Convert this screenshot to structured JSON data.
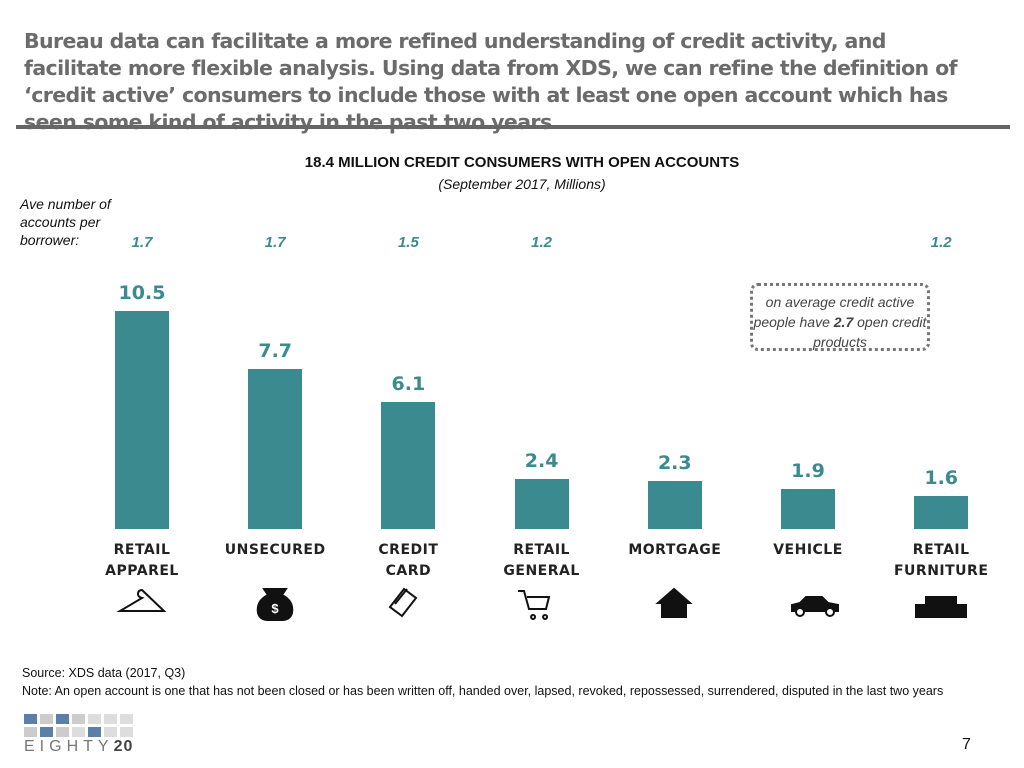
{
  "header": {
    "title": "Bureau data can facilitate a more refined understanding of credit activity, and facilitate more flexible analysis. Using data from XDS, we can refine the definition of ‘credit active’ consumers to include those with at least one open account which has seen some kind of activity in the past two years"
  },
  "chart_data": {
    "type": "bar",
    "title": "18.4 MILLION CREDIT CONSUMERS WITH OPEN ACCOUNTS",
    "subtitle": "(September 2017, Millions)",
    "categories": [
      "RETAIL APPAREL",
      "UNSECURED",
      "CREDIT CARD",
      "RETAIL GENERAL",
      "MORTGAGE",
      "VEHICLE",
      "RETAIL FURNITURE"
    ],
    "values": [
      10.5,
      7.7,
      6.1,
      2.4,
      2.3,
      1.9,
      1.6
    ],
    "color": "#3a8a8f",
    "average_label": "Ave number of accounts per borrower:",
    "averages": [
      1.7,
      1.7,
      1.5,
      1.2,
      null,
      null,
      1.2
    ],
    "callout": {
      "before": "on average credit active people have",
      "value": 2.7,
      "after": "open credit products"
    }
  },
  "footer": {
    "source": "Source: XDS data (2017, Q3)",
    "note": "Note: An open account is one that has not been closed or has been written off, handed over, lapsed, revoked, repossessed, surrendered, disputed in the last two years",
    "logo_a": "EIGHTY",
    "logo_b": "20",
    "page": "7"
  }
}
